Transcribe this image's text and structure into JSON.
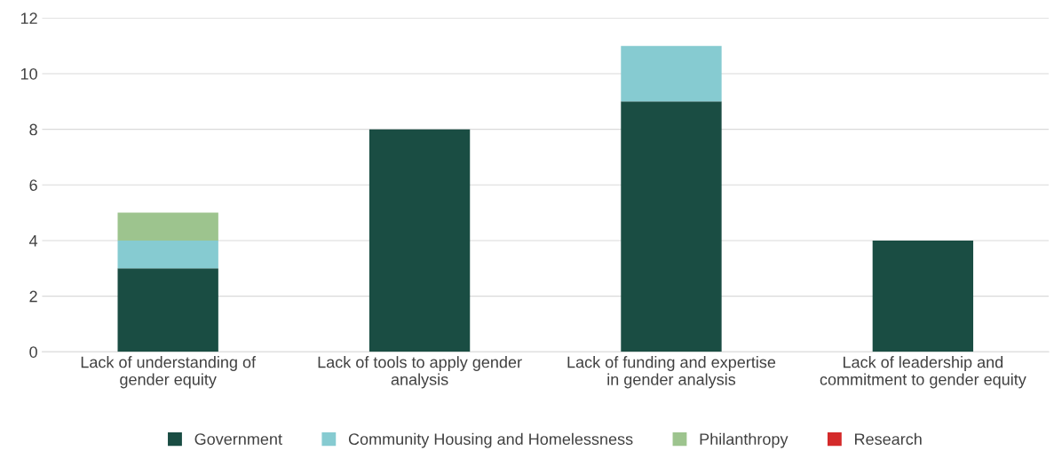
{
  "chart_data": {
    "type": "bar",
    "stacked": true,
    "categories": [
      "Lack of understanding of\ngender equity",
      "Lack of tools to apply gender\nanalysis",
      "Lack of funding and expertise\nin gender analysis",
      "Lack of leadership and\ncommitment to gender equity"
    ],
    "series": [
      {
        "name": "Government",
        "color": "#1a4d43",
        "values": [
          3,
          8,
          9,
          4
        ]
      },
      {
        "name": "Community Housing and Homelessness",
        "color": "#86cbd1",
        "values": [
          1,
          0,
          2,
          0
        ]
      },
      {
        "name": "Philanthropy",
        "color": "#9dc48e",
        "values": [
          1,
          0,
          0,
          0
        ]
      },
      {
        "name": "Research",
        "color": "#d42a2a",
        "values": [
          0,
          0,
          0,
          0
        ]
      }
    ],
    "ylim": [
      0,
      12
    ],
    "yticks": [
      0,
      2,
      4,
      6,
      8,
      10,
      12
    ],
    "grid": "y",
    "legend": "bottom"
  }
}
